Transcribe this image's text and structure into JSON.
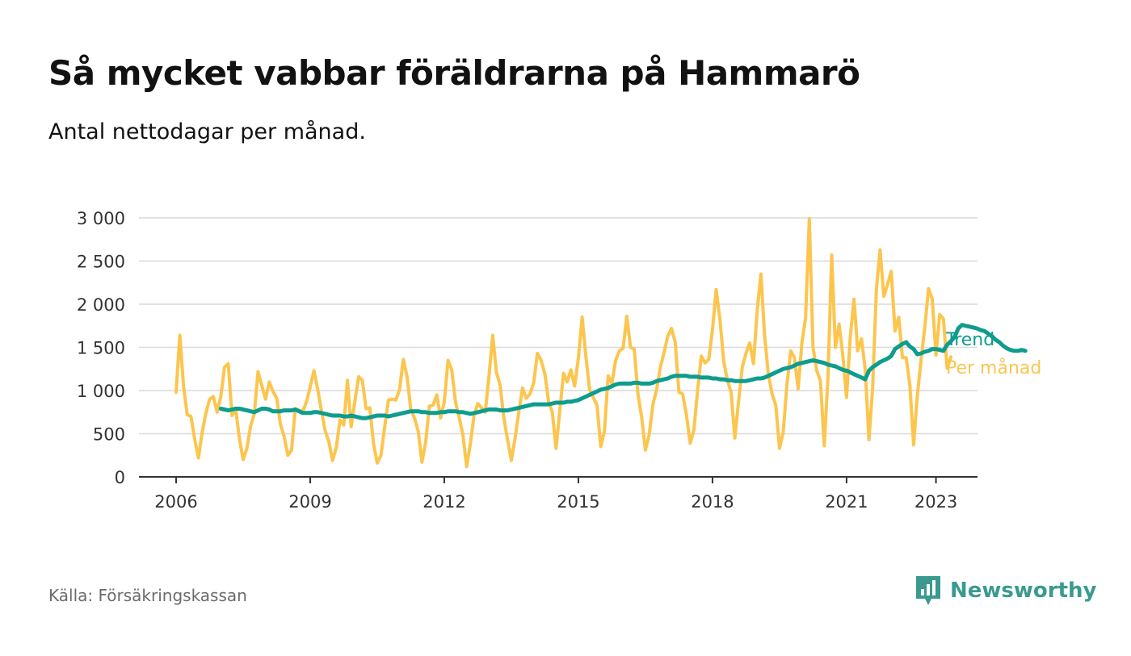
{
  "title": "Så mycket vabbar föräldrarna på Hammarö",
  "subtitle": "Antal nettodagar per månad.",
  "source": "Källa: Försäkringskassan",
  "brand": {
    "name": "Newsworthy",
    "icon": "bar-chart-badge-icon",
    "color": "#3a9a8f"
  },
  "chart_data": {
    "type": "line",
    "x_domain": [
      "2006-01",
      "2023-12"
    ],
    "ylim": [
      0,
      3000
    ],
    "y_ticks": [
      {
        "value": 0,
        "label": "0"
      },
      {
        "value": 500,
        "label": "500"
      },
      {
        "value": 1000,
        "label": "1 000"
      },
      {
        "value": 1500,
        "label": "1 500"
      },
      {
        "value": 2000,
        "label": "2 000"
      },
      {
        "value": 2500,
        "label": "2 500"
      },
      {
        "value": 3000,
        "label": "3 000"
      }
    ],
    "x_ticks": [
      {
        "value": "2006-01",
        "label": "2006"
      },
      {
        "value": "2009-01",
        "label": "2009"
      },
      {
        "value": "2012-01",
        "label": "2012"
      },
      {
        "value": "2015-01",
        "label": "2015"
      },
      {
        "value": "2018-01",
        "label": "2018"
      },
      {
        "value": "2021-01",
        "label": "2021"
      },
      {
        "value": "2023-01",
        "label": "2023"
      }
    ],
    "grid": true,
    "series": [
      {
        "name": "Per månad",
        "color": "#fcc54e",
        "start": "2006-01",
        "values": [
          980,
          1640,
          1050,
          720,
          700,
          430,
          220,
          520,
          740,
          900,
          930,
          750,
          930,
          1270,
          1310,
          710,
          780,
          440,
          200,
          330,
          590,
          730,
          1220,
          1060,
          900,
          1100,
          990,
          910,
          610,
          470,
          250,
          310,
          790,
          770,
          760,
          870,
          1040,
          1230,
          1020,
          770,
          540,
          410,
          190,
          340,
          660,
          600,
          1120,
          580,
          880,
          1160,
          1120,
          790,
          800,
          380,
          160,
          250,
          580,
          890,
          900,
          890,
          1010,
          1360,
          1160,
          780,
          680,
          530,
          170,
          400,
          820,
          830,
          950,
          680,
          870,
          1350,
          1240,
          870,
          690,
          490,
          120,
          380,
          720,
          850,
          800,
          750,
          1170,
          1640,
          1210,
          1060,
          680,
          430,
          190,
          450,
          750,
          1030,
          910,
          960,
          1090,
          1430,
          1350,
          1190,
          870,
          750,
          330,
          760,
          1200,
          1100,
          1240,
          1050,
          1380,
          1850,
          1400,
          1010,
          920,
          830,
          350,
          530,
          1170,
          1080,
          1350,
          1460,
          1490,
          1860,
          1500,
          1480,
          960,
          690,
          310,
          490,
          840,
          1010,
          1270,
          1440,
          1630,
          1720,
          1560,
          980,
          960,
          720,
          390,
          540,
          1000,
          1400,
          1320,
          1360,
          1700,
          2170,
          1820,
          1340,
          1120,
          980,
          450,
          870,
          1270,
          1430,
          1550,
          1310,
          1930,
          2350,
          1630,
          1190,
          960,
          830,
          330,
          520,
          1070,
          1460,
          1380,
          1020,
          1550,
          1840,
          2990,
          1500,
          1230,
          1110,
          360,
          1150,
          2570,
          1500,
          1770,
          1400,
          920,
          1620,
          2060,
          1460,
          1600,
          1250,
          430,
          1030,
          2170,
          2630,
          2090,
          2230,
          2380,
          1690,
          1850,
          1380,
          1380,
          1060,
          370,
          940,
          1350,
          1730,
          2180,
          2060,
          1410,
          1880,
          1830,
          1260,
          1390
        ]
      },
      {
        "name": "Trend",
        "color": "#0e9c8d",
        "start": "2006-01",
        "values": [
          null,
          null,
          null,
          null,
          null,
          null,
          null,
          null,
          null,
          null,
          null,
          null,
          790,
          780,
          770,
          780,
          790,
          790,
          780,
          770,
          760,
          750,
          770,
          790,
          790,
          780,
          760,
          760,
          760,
          770,
          770,
          770,
          780,
          760,
          740,
          740,
          740,
          750,
          750,
          740,
          730,
          720,
          710,
          710,
          710,
          700,
          700,
          710,
          700,
          690,
          680,
          680,
          690,
          700,
          710,
          710,
          710,
          700,
          710,
          720,
          730,
          740,
          750,
          760,
          760,
          760,
          750,
          750,
          740,
          740,
          740,
          750,
          750,
          760,
          760,
          760,
          750,
          750,
          740,
          730,
          740,
          750,
          760,
          770,
          780,
          780,
          780,
          770,
          770,
          770,
          780,
          790,
          800,
          810,
          820,
          830,
          840,
          840,
          840,
          840,
          840,
          850,
          860,
          860,
          860,
          870,
          870,
          880,
          890,
          910,
          930,
          950,
          970,
          990,
          1010,
          1020,
          1030,
          1050,
          1070,
          1080,
          1080,
          1080,
          1080,
          1090,
          1090,
          1080,
          1080,
          1080,
          1090,
          1110,
          1120,
          1130,
          1140,
          1160,
          1170,
          1170,
          1170,
          1170,
          1160,
          1160,
          1160,
          1150,
          1150,
          1150,
          1140,
          1140,
          1130,
          1130,
          1120,
          1120,
          1110,
          1110,
          1110,
          1110,
          1120,
          1130,
          1140,
          1140,
          1150,
          1170,
          1190,
          1210,
          1230,
          1250,
          1260,
          1270,
          1290,
          1310,
          1320,
          1330,
          1340,
          1350,
          1340,
          1330,
          1320,
          1300,
          1290,
          1280,
          1260,
          1240,
          1230,
          1210,
          1190,
          1170,
          1150,
          1130,
          1230,
          1270,
          1300,
          1330,
          1350,
          1370,
          1400,
          1480,
          1510,
          1540,
          1560,
          1510,
          1480,
          1420,
          1430,
          1450,
          1460,
          1480,
          1480,
          1470,
          1460,
          1530,
          1570,
          1620,
          1720,
          1760,
          1750,
          1740,
          1730,
          1720,
          1700,
          1690,
          1660,
          1630,
          1590,
          1560,
          1520,
          1490,
          1470,
          1460,
          1460,
          1470,
          1460
        ]
      }
    ]
  }
}
